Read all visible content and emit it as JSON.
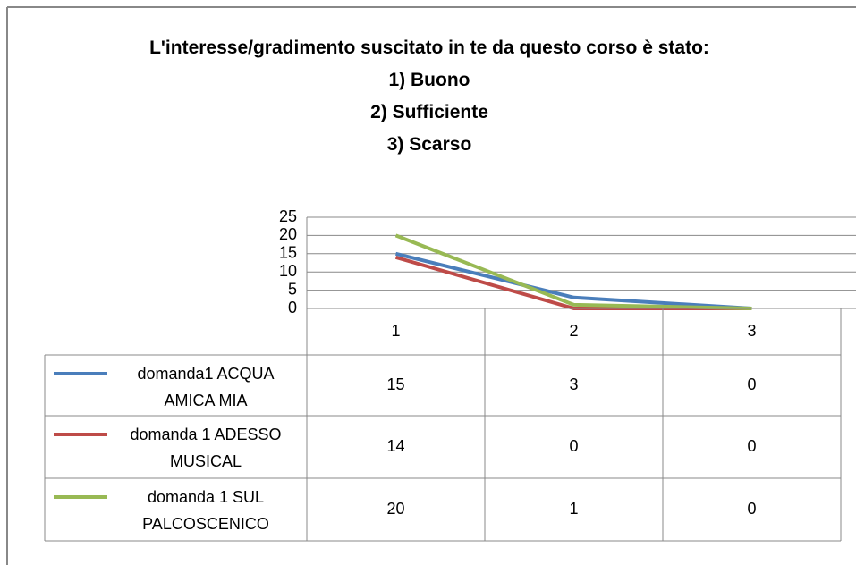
{
  "chart_data": {
    "type": "line",
    "title": "L'interesse/gradimento suscitato in te da questo corso è stato:\n1) Buono\n2) Sufficiente\n3) Scarso",
    "categories": [
      "1",
      "2",
      "3"
    ],
    "series": [
      {
        "name": "domanda1 ACQUA AMICA MIA",
        "color": "#4a7ebb",
        "values": [
          15,
          3,
          0
        ]
      },
      {
        "name": "domanda 1 ADESSO MUSICAL",
        "color": "#be4b48",
        "values": [
          14,
          0,
          0
        ]
      },
      {
        "name": "domanda 1 SUL PALCOSCENICO",
        "color": "#98b954",
        "values": [
          20,
          1,
          0
        ]
      }
    ],
    "ylim": [
      0,
      25
    ],
    "yticks": [
      0,
      5,
      10,
      15,
      20,
      25
    ],
    "grid": true,
    "data_table": true
  }
}
